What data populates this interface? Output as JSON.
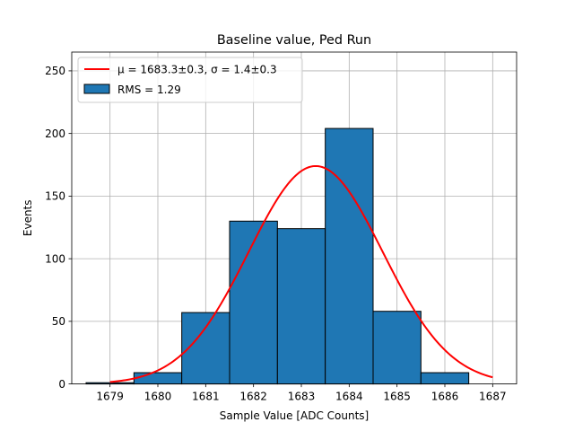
{
  "chart_data": {
    "type": "bar",
    "title": "Baseline value, Ped Run",
    "xlabel": "Sample Value [ADC Counts]",
    "ylabel": "Events",
    "xlim": [
      1678.2,
      1687.5
    ],
    "ylim": [
      0,
      265
    ],
    "grid": true,
    "x_ticks": [
      1679,
      1680,
      1681,
      1682,
      1683,
      1684,
      1685,
      1686,
      1687
    ],
    "y_ticks": [
      0,
      50,
      100,
      150,
      200,
      250
    ],
    "bins": [
      {
        "lo": 1678.5,
        "hi": 1679.5,
        "count": 1
      },
      {
        "lo": 1679.5,
        "hi": 1680.5,
        "count": 9
      },
      {
        "lo": 1680.5,
        "hi": 1681.5,
        "count": 57
      },
      {
        "lo": 1681.5,
        "hi": 1682.5,
        "count": 130
      },
      {
        "lo": 1682.5,
        "hi": 1683.5,
        "count": 124
      },
      {
        "lo": 1683.5,
        "hi": 1684.5,
        "count": 204
      },
      {
        "lo": 1684.5,
        "hi": 1685.5,
        "count": 58
      },
      {
        "lo": 1685.5,
        "hi": 1686.5,
        "count": 9
      }
    ],
    "fit": {
      "type": "gaussian",
      "mu": 1683.3,
      "sigma": 1.4,
      "amplitude": 174,
      "x_range": [
        1679,
        1687
      ]
    },
    "legend": {
      "placement": "top-left",
      "fit_label": "μ = 1683.3±0.3, σ = 1.4±0.3",
      "hist_label": "RMS = 1.29"
    },
    "colors": {
      "bar_fill": "#1f77b4",
      "bar_edge": "#000000",
      "fit_line": "#ff0000",
      "grid": "#b0b0b0"
    }
  }
}
